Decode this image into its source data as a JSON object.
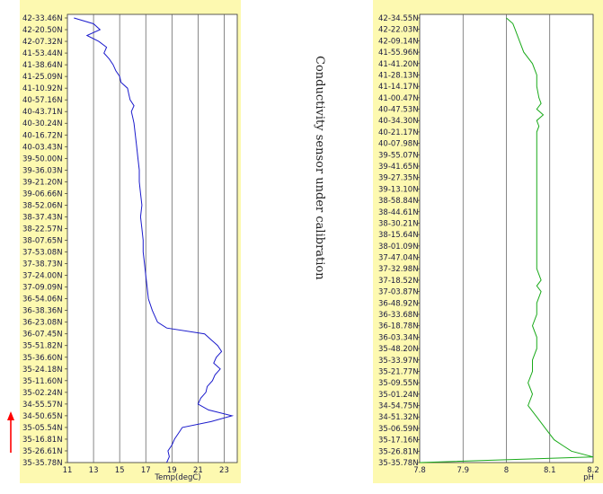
{
  "note": "Conductivity sensor under calibration",
  "arrow_color": "#ff0000",
  "panel_bg": "#fdf9b0",
  "grid_color": "#555555",
  "chart_data": [
    {
      "type": "line",
      "xlabel": "Temp(degC)",
      "xlim": [
        11,
        24
      ],
      "xticks": [
        11,
        13,
        15,
        17,
        19,
        21,
        23
      ],
      "grid": true,
      "line_color": "#1a1acc",
      "ytick_labels": [
        "42-33.46N",
        "42-20.50N",
        "42-07.32N",
        "41-53.44N",
        "41-38.64N",
        "41-25.09N",
        "41-10.92N",
        "40-57.16N",
        "40-43.71N",
        "40-30.24N",
        "40-16.72N",
        "40-03.43N",
        "39-50.00N",
        "39-36.03N",
        "39-21.20N",
        "39-06.66N",
        "38-52.06N",
        "38-37.43N",
        "38-22.57N",
        "38-07.65N",
        "37-53.08N",
        "37-38.73N",
        "37-24.00N",
        "37-09.09N",
        "36-54.06N",
        "36-38.36N",
        "36-23.08N",
        "36-07.45N",
        "35-51.82N",
        "35-36.60N",
        "35-24.18N",
        "35-11.60N",
        "35-02.24N",
        "34-55.57N",
        "34-50.65N",
        "35-05.54N",
        "35-16.81N",
        "35-26.61N",
        "35-35.78N"
      ],
      "profile": [
        [
          0,
          11.5
        ],
        [
          0.5,
          13.0
        ],
        [
          1,
          13.5
        ],
        [
          1.5,
          12.5
        ],
        [
          2,
          13.4
        ],
        [
          2.5,
          14.0
        ],
        [
          3,
          13.8
        ],
        [
          3.5,
          14.2
        ],
        [
          4,
          14.5
        ],
        [
          4.5,
          14.7
        ],
        [
          5,
          15.0
        ],
        [
          5.5,
          15.1
        ],
        [
          6,
          15.6
        ],
        [
          6.5,
          15.7
        ],
        [
          7,
          15.8
        ],
        [
          7.5,
          16.1
        ],
        [
          8,
          15.9
        ],
        [
          8.5,
          16.0
        ],
        [
          9,
          16.1
        ],
        [
          10,
          16.2
        ],
        [
          11,
          16.3
        ],
        [
          12,
          16.4
        ],
        [
          13,
          16.5
        ],
        [
          14,
          16.5
        ],
        [
          15,
          16.6
        ],
        [
          16,
          16.7
        ],
        [
          17,
          16.6
        ],
        [
          18,
          16.7
        ],
        [
          19,
          16.8
        ],
        [
          20,
          16.8
        ],
        [
          21,
          16.9
        ],
        [
          22,
          17.0
        ],
        [
          23,
          17.1
        ],
        [
          24,
          17.2
        ],
        [
          25,
          17.5
        ],
        [
          26,
          17.9
        ],
        [
          26.5,
          18.6
        ],
        [
          27,
          21.5
        ],
        [
          27.5,
          22.0
        ],
        [
          28,
          22.5
        ],
        [
          28.5,
          22.8
        ],
        [
          29,
          22.4
        ],
        [
          29.5,
          22.2
        ],
        [
          30,
          22.7
        ],
        [
          30.5,
          22.3
        ],
        [
          31,
          22.1
        ],
        [
          31.5,
          21.7
        ],
        [
          32,
          21.6
        ],
        [
          32.5,
          21.2
        ],
        [
          33,
          21.0
        ],
        [
          33.5,
          21.8
        ],
        [
          34,
          23.6
        ],
        [
          34.5,
          22.0
        ],
        [
          35,
          19.8
        ],
        [
          35.5,
          19.5
        ],
        [
          36,
          19.2
        ],
        [
          36.5,
          19.0
        ],
        [
          37,
          18.7
        ],
        [
          37.5,
          18.8
        ],
        [
          38,
          18.6
        ]
      ]
    },
    {
      "type": "line",
      "xlabel": "pH",
      "xlim": [
        7.8,
        8.2
      ],
      "xticks": [
        7.8,
        7.9,
        8,
        8.1,
        8.2
      ],
      "grid": true,
      "line_color": "#1aaa1a",
      "ytick_labels": [
        "42-34.55N",
        "42-22.03N",
        "42-09.14N",
        "41-55.96N",
        "41-41.20N",
        "41-28.13N",
        "41-14.17N",
        "41-00.47N",
        "40-47.53N",
        "40-34.30N",
        "40-21.17N",
        "40-07.98N",
        "39-55.07N",
        "39-41.65N",
        "39-27.35N",
        "39-13.10N",
        "38-58.84N",
        "38-44.61N",
        "38-30.21N",
        "38-15.64N",
        "38-01.09N",
        "37-47.04N",
        "37-32.98N",
        "37-18.52N",
        "37-03.87N",
        "36-48.92N",
        "36-33.68N",
        "36-18.78N",
        "36-03.34N",
        "35-48.20N",
        "35-33.97N",
        "35-21.77N",
        "35-09.55N",
        "35-01.24N",
        "34-54.75N",
        "34-51.32N",
        "35-06.59N",
        "35-17.16N",
        "35-26.81N",
        "35-35.78N"
      ],
      "profile": [
        [
          0,
          8.0
        ],
        [
          0.5,
          8.015
        ],
        [
          1,
          8.02
        ],
        [
          2,
          8.03
        ],
        [
          3,
          8.04
        ],
        [
          4,
          8.06
        ],
        [
          5,
          8.07
        ],
        [
          6,
          8.07
        ],
        [
          7,
          8.075
        ],
        [
          7.5,
          8.08
        ],
        [
          8,
          8.07
        ],
        [
          8.5,
          8.085
        ],
        [
          9,
          8.07
        ],
        [
          9.5,
          8.075
        ],
        [
          10,
          8.07
        ],
        [
          11,
          8.07
        ],
        [
          12,
          8.07
        ],
        [
          13,
          8.07
        ],
        [
          14,
          8.07
        ],
        [
          15,
          8.07
        ],
        [
          16,
          8.07
        ],
        [
          17,
          8.07
        ],
        [
          18,
          8.07
        ],
        [
          19,
          8.07
        ],
        [
          20,
          8.07
        ],
        [
          21,
          8.07
        ],
        [
          22,
          8.07
        ],
        [
          23,
          8.08
        ],
        [
          23.5,
          8.07
        ],
        [
          24,
          8.08
        ],
        [
          25,
          8.07
        ],
        [
          26,
          8.07
        ],
        [
          27,
          8.06
        ],
        [
          28,
          8.07
        ],
        [
          29,
          8.07
        ],
        [
          30,
          8.06
        ],
        [
          31,
          8.06
        ],
        [
          32,
          8.05
        ],
        [
          33,
          8.06
        ],
        [
          34,
          8.05
        ],
        [
          35,
          8.07
        ],
        [
          36,
          8.09
        ],
        [
          37,
          8.11
        ],
        [
          37.5,
          8.13
        ],
        [
          38,
          8.15
        ],
        [
          38.5,
          8.2
        ],
        [
          39,
          7.8
        ]
      ]
    }
  ]
}
